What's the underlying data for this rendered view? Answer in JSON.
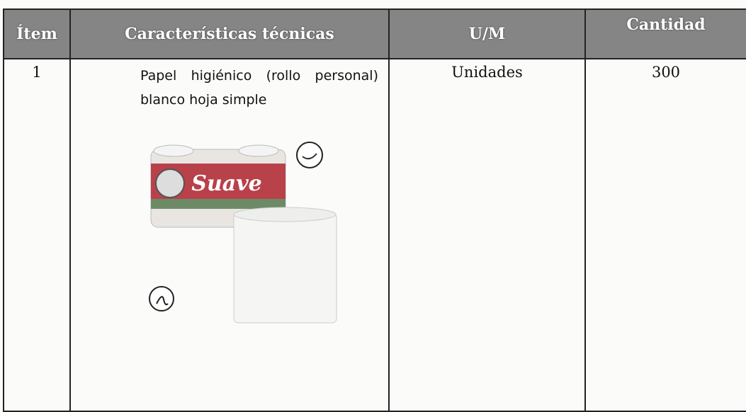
{
  "table": {
    "header": [
      "Ítem",
      "Características técnicas",
      "U/M",
      "Cantidad"
    ],
    "rows": [
      [
        "1",
        "Papel higiénico (rollo personal) blanco hoja simple",
        "Unidades",
        "300"
      ]
    ]
  },
  "product_image": {
    "brand": "Suave"
  }
}
